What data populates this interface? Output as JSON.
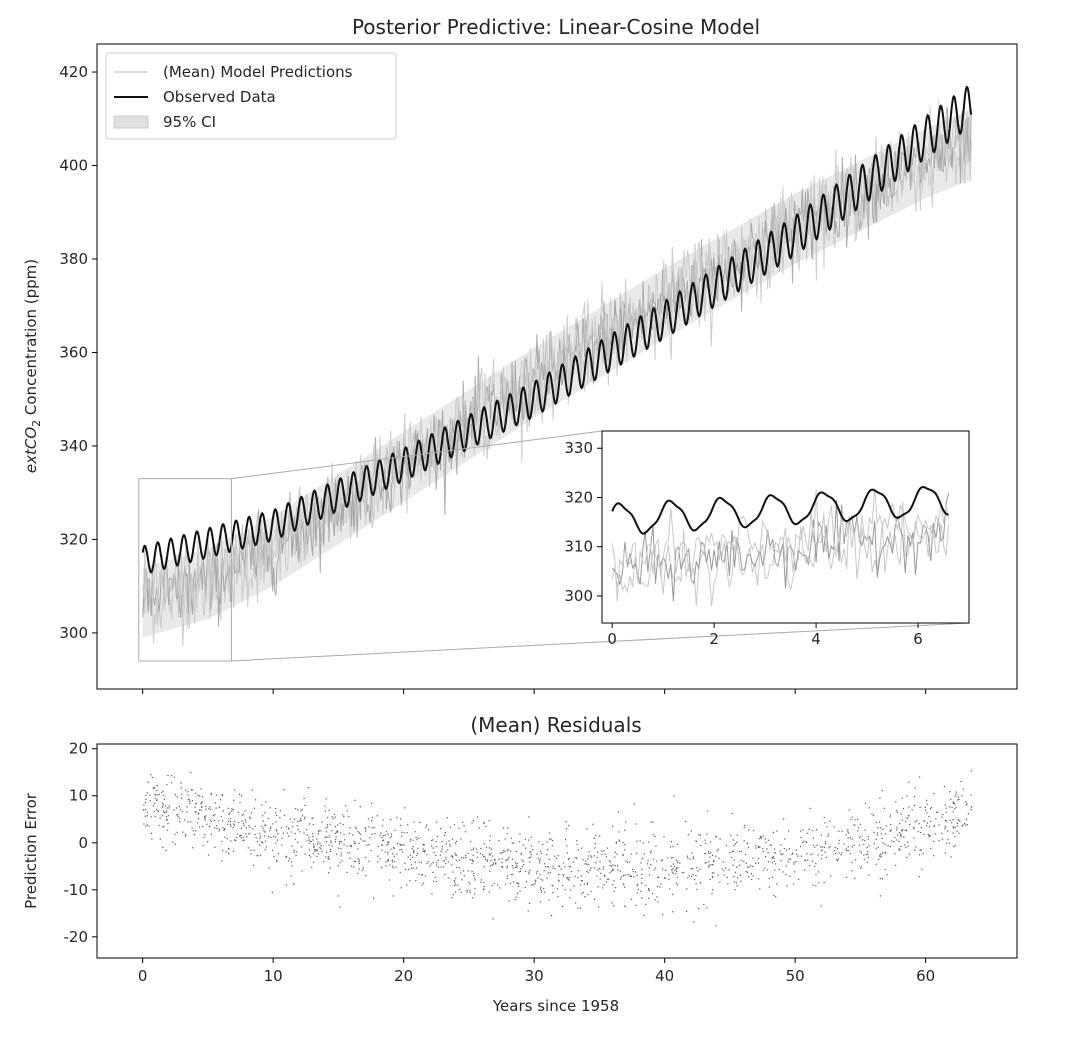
{
  "chart_data": [
    {
      "type": "line",
      "title": "Posterior Predictive: Linear-Cosine Model",
      "xlabel": "",
      "ylabel": "extCO",
      "ylabel_sub": "2",
      "ylabel_rest": " Concentration (ppm)",
      "xlim": [
        -3.5,
        67
      ],
      "ylim": [
        288,
        426
      ],
      "xticks": [
        0,
        10,
        20,
        30,
        40,
        50,
        60
      ],
      "xtick_labels_shown": false,
      "yticks": [
        300,
        320,
        340,
        360,
        380,
        400,
        420
      ],
      "legend": {
        "position": "upper-left",
        "entries": [
          "(Mean) Model Predictions",
          "Observed Data",
          "95% CI"
        ]
      },
      "series": [
        {
          "name": "Observed Data",
          "color": "#111111",
          "form": "trend + seasonal cycle",
          "x_range": [
            0,
            63.5
          ],
          "trend": {
            "x": [
              0,
              10,
              20,
              30,
              40,
              50,
              60,
              63.5
            ],
            "y": [
              315.5,
              323,
              336,
              350,
              367,
              385,
              406,
              413
            ]
          },
          "seasonal_amplitude_start": 3,
          "seasonal_amplitude_end": 4.5,
          "period": 1,
          "end_values": [
            414,
            419.5,
            413
          ]
        },
        {
          "name": "(Mean) Model Predictions",
          "color": "#cccccc",
          "form": "noisy band around trend",
          "x_range": [
            0,
            63.5
          ],
          "center": {
            "x": [
              0,
              5,
              10,
              20,
              30,
              40,
              50,
              60,
              63.5
            ],
            "y": [
              307,
              311,
              318,
              336,
              354,
              371,
              387,
              401,
              405
            ]
          },
          "noise_spread": 9
        },
        {
          "name": "95% CI",
          "color": "#d9d9d9"
        }
      ],
      "inset": {
        "xlim": [
          -0.2,
          7
        ],
        "ylim": [
          294.5,
          333.5
        ],
        "xticks": [
          0,
          2,
          4,
          6
        ],
        "yticks": [
          300,
          310,
          320,
          330
        ],
        "zoom_region": {
          "x": [
            -0.3,
            6.8
          ],
          "y": [
            294,
            333
          ]
        },
        "observed": {
          "x": [
            0,
            0.3,
            0.7,
            1.5,
            2.5,
            3.5,
            4.5,
            5.5,
            6.2,
            6.6
          ],
          "y": [
            316,
            318,
            315,
            313,
            318,
            320,
            316,
            322,
            316,
            318
          ]
        }
      }
    },
    {
      "type": "scatter",
      "title": "(Mean) Residuals",
      "xlabel": "Years since 1958",
      "ylabel": "Prediction Error",
      "xlim": [
        -3.5,
        67
      ],
      "ylim": [
        -24.5,
        21
      ],
      "xticks": [
        0,
        10,
        20,
        30,
        40,
        50,
        60
      ],
      "yticks": [
        -20,
        -10,
        0,
        10,
        20
      ],
      "color": "#555555",
      "form": "noisy points around a U-shaped mean",
      "mean_curve": {
        "x": [
          0,
          5,
          10,
          20,
          30,
          37,
          45,
          50,
          55,
          60,
          63.5
        ],
        "y": [
          9,
          5,
          2,
          -2,
          -5,
          -6,
          -4,
          -2,
          0,
          4,
          7
        ]
      },
      "noise_std": 4,
      "x_range": [
        0,
        63.5
      ],
      "n_points": 1800
    }
  ]
}
